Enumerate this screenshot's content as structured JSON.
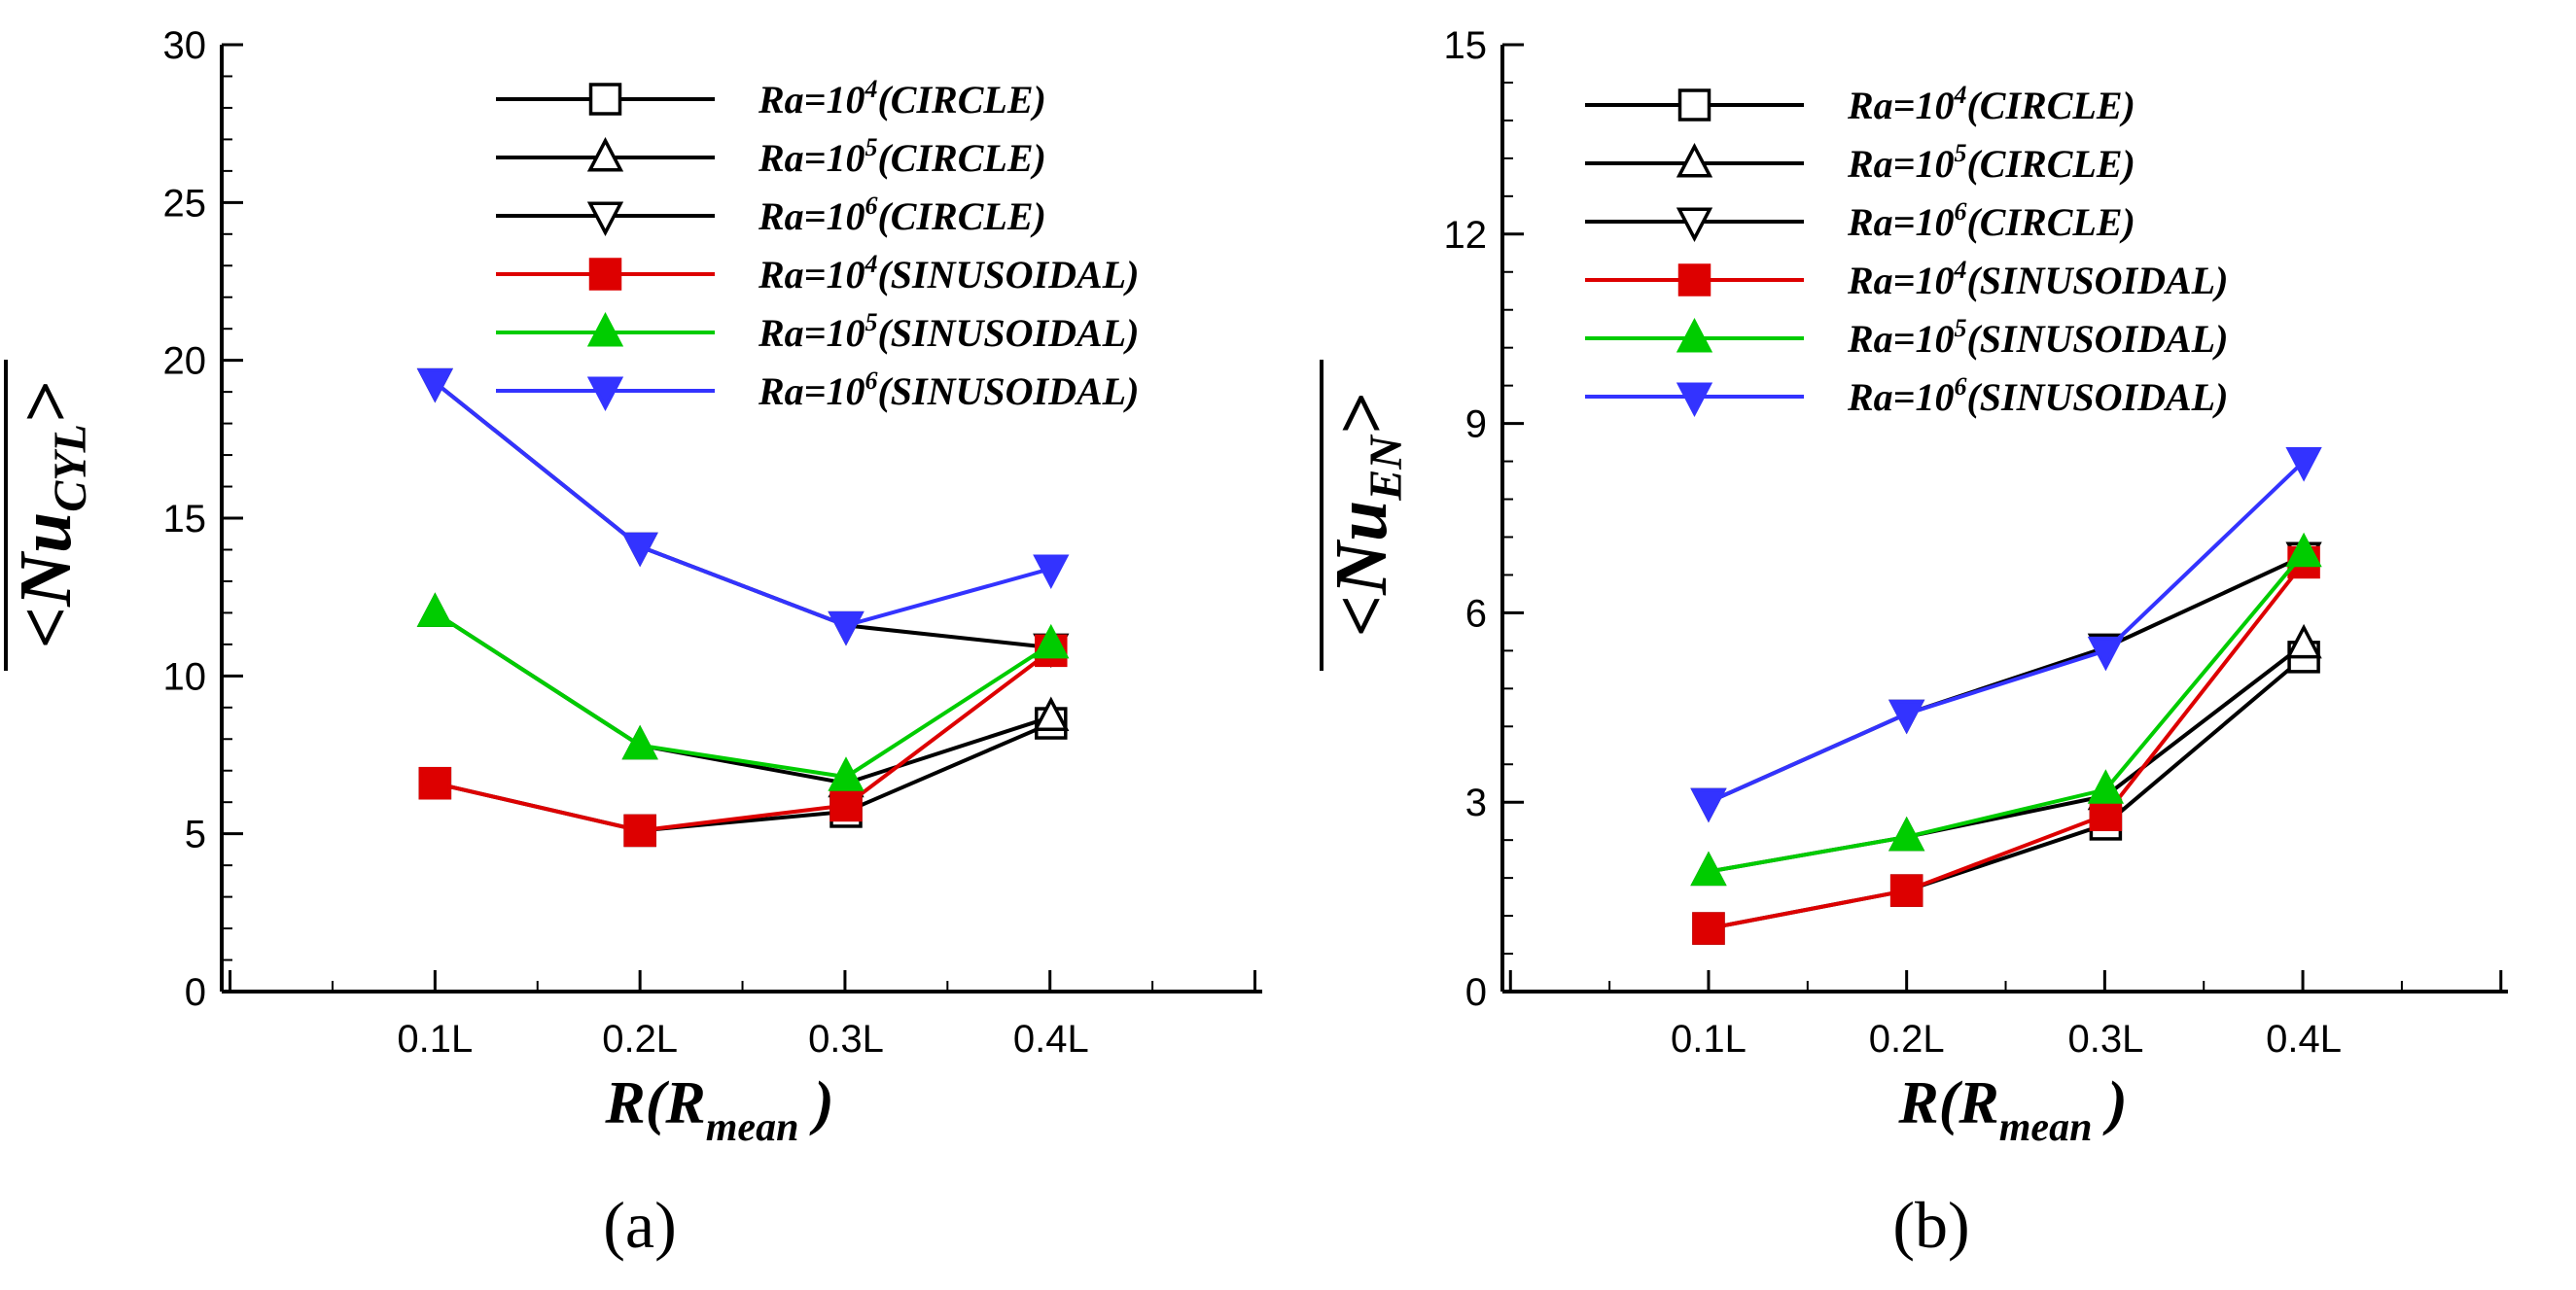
{
  "chart_data": [
    {
      "type": "line",
      "panel_label": "(a)",
      "categories": [
        "0.1L",
        "0.2L",
        "0.3L",
        "0.4L"
      ],
      "xlabel": {
        "main": "R(R",
        "sub": "mean",
        "close": " )"
      },
      "ylabel": {
        "main": "<Nu",
        "sub": "CYL",
        "close": ">"
      },
      "ylim": [
        0,
        30
      ],
      "yticks": [
        "0",
        "5",
        "10",
        "15",
        "20",
        "25",
        "30"
      ],
      "series": [
        {
          "name": "Ra=10^4(CIRCLE)",
          "legend": {
            "base": "Ra=10",
            "exp": "4",
            "suffix": "(CIRCLE)"
          },
          "color": "#000000",
          "marker": "square-open",
          "values": [
            6.6,
            5.1,
            5.7,
            8.5
          ]
        },
        {
          "name": "Ra=10^5(CIRCLE)",
          "legend": {
            "base": "Ra=10",
            "exp": "5",
            "suffix": "(CIRCLE)"
          },
          "color": "#000000",
          "marker": "triangle-up-open",
          "values": [
            12.0,
            7.8,
            6.6,
            8.7
          ]
        },
        {
          "name": "Ra=10^6(CIRCLE)",
          "legend": {
            "base": "Ra=10",
            "exp": "6",
            "suffix": "(CIRCLE)"
          },
          "color": "#000000",
          "marker": "triangle-down-open",
          "values": [
            19.3,
            14.1,
            11.6,
            10.9
          ]
        },
        {
          "name": "Ra=10^4(SINUSOIDAL)",
          "legend": {
            "base": "Ra=10",
            "exp": "4",
            "suffix": "(SINUSOIDAL)"
          },
          "color": "#dd0000",
          "marker": "square-filled",
          "values": [
            6.6,
            5.1,
            5.9,
            10.8
          ]
        },
        {
          "name": "Ra=10^5(SINUSOIDAL)",
          "legend": {
            "base": "Ra=10",
            "exp": "5",
            "suffix": "(SINUSOIDAL)"
          },
          "color": "#00cc00",
          "marker": "triangle-up-filled",
          "values": [
            12.0,
            7.8,
            6.8,
            11.0
          ]
        },
        {
          "name": "Ra=10^6(SINUSOIDAL)",
          "legend": {
            "base": "Ra=10",
            "exp": "6",
            "suffix": "(SINUSOIDAL)"
          },
          "color": "#3333ff",
          "marker": "triangle-down-filled",
          "values": [
            19.3,
            14.1,
            11.6,
            13.4
          ]
        }
      ]
    },
    {
      "type": "line",
      "panel_label": "(b)",
      "categories": [
        "0.1L",
        "0.2L",
        "0.3L",
        "0.4L"
      ],
      "xlabel": {
        "main": "R(R",
        "sub": "mean",
        "close": " )"
      },
      "ylabel": {
        "main": "<Nu",
        "sub": "EN",
        "close": ">"
      },
      "ylim": [
        0,
        15
      ],
      "yticks": [
        "0",
        "3",
        "6",
        "9",
        "12",
        "15"
      ],
      "series": [
        {
          "name": "Ra=10^4(CIRCLE)",
          "legend": {
            "base": "Ra=10",
            "exp": "4",
            "suffix": "(CIRCLE)"
          },
          "color": "#000000",
          "marker": "square-open",
          "values": [
            1.0,
            1.6,
            2.65,
            5.3
          ]
        },
        {
          "name": "Ra=10^5(CIRCLE)",
          "legend": {
            "base": "Ra=10",
            "exp": "5",
            "suffix": "(CIRCLE)"
          },
          "color": "#000000",
          "marker": "triangle-up-open",
          "values": [
            1.9,
            2.45,
            3.1,
            5.5
          ]
        },
        {
          "name": "Ra=10^6(CIRCLE)",
          "legend": {
            "base": "Ra=10",
            "exp": "6",
            "suffix": "(CIRCLE)"
          },
          "color": "#000000",
          "marker": "triangle-down-open",
          "values": [
            3.0,
            4.4,
            5.45,
            6.9
          ]
        },
        {
          "name": "Ra=10^4(SINUSOIDAL)",
          "legend": {
            "base": "Ra=10",
            "exp": "4",
            "suffix": "(SINUSOIDAL)"
          },
          "color": "#dd0000",
          "marker": "square-filled",
          "values": [
            1.0,
            1.6,
            2.8,
            6.8
          ]
        },
        {
          "name": "Ra=10^5(SINUSOIDAL)",
          "legend": {
            "base": "Ra=10",
            "exp": "5",
            "suffix": "(SINUSOIDAL)"
          },
          "color": "#00cc00",
          "marker": "triangle-up-filled",
          "values": [
            1.9,
            2.45,
            3.2,
            6.95
          ]
        },
        {
          "name": "Ra=10^6(SINUSOIDAL)",
          "legend": {
            "base": "Ra=10",
            "exp": "6",
            "suffix": "(SINUSOIDAL)"
          },
          "color": "#3333ff",
          "marker": "triangle-down-filled",
          "values": [
            3.0,
            4.4,
            5.4,
            8.4
          ]
        }
      ]
    }
  ]
}
